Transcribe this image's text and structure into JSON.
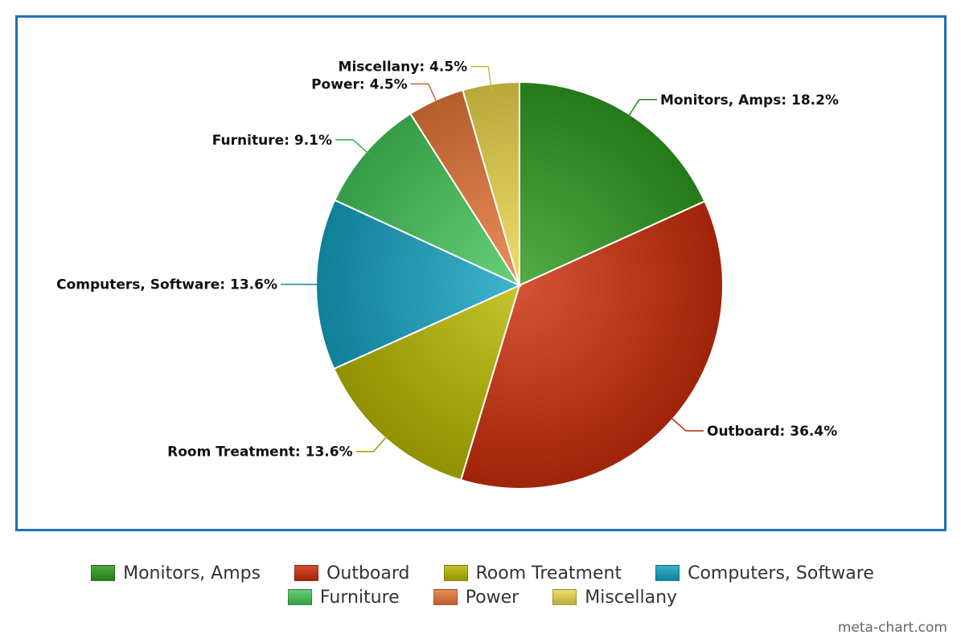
{
  "chart_data": {
    "type": "pie",
    "title": "",
    "slices": [
      {
        "label": "Monitors, Amps",
        "value": 18.2,
        "display": "Monitors, Amps: 18.2%",
        "color": "#2e9b1f",
        "label_side": "right"
      },
      {
        "label": "Outboard",
        "value": 36.4,
        "display": "Outboard: 36.4%",
        "color": "#cc2d0a",
        "label_side": "right"
      },
      {
        "label": "Room Treatment",
        "value": 13.6,
        "display": "Room Treatment: 13.6%",
        "color": "#b8b800",
        "label_side": "left"
      },
      {
        "label": "Computers, Software",
        "value": 13.6,
        "display": "Computers, Software: 13.6%",
        "color": "#14a3c3",
        "label_side": "left"
      },
      {
        "label": "Furniture",
        "value": 9.1,
        "display": "Furniture: 9.1%",
        "color": "#45c75a",
        "label_side": "left"
      },
      {
        "label": "Power",
        "value": 4.5,
        "display": "Power: 4.5%",
        "color": "#e8773a",
        "label_side": "left"
      },
      {
        "label": "Miscellany",
        "value": 4.5,
        "display": "Miscellany: 4.5%",
        "color": "#ecd84a",
        "label_side": "left"
      }
    ],
    "legend": {
      "placement": "bottom",
      "rows": [
        [
          "Monitors, Amps",
          "Outboard",
          "Room Treatment",
          "Computers, Software"
        ],
        [
          "Furniture",
          "Power",
          "Miscellany"
        ]
      ]
    }
  },
  "border_color": "#1f6fb7",
  "watermark": "meta-chart.com"
}
